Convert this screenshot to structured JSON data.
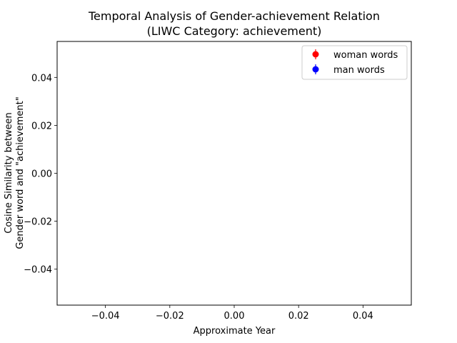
{
  "chart_data": {
    "type": "scatter",
    "title": "Temporal Analysis of Gender-achievement Relation",
    "subtitle": "(LIWC Category: achievement)",
    "xlabel": "Approximate Year",
    "ylabel": [
      "Cosine Similarity between",
      "Gender word and \"achievement\""
    ],
    "xlim": [
      -0.055,
      0.055
    ],
    "ylim": [
      -0.055,
      0.055
    ],
    "x_ticks": [
      -0.04,
      -0.02,
      0.0,
      0.02,
      0.04
    ],
    "x_tick_labels": [
      "−0.04",
      "−0.02",
      "0.00",
      "0.02",
      "0.04"
    ],
    "y_ticks": [
      0.04,
      0.02,
      0.0,
      -0.02,
      -0.04
    ],
    "y_tick_labels": [
      "0.04",
      "0.02",
      "0.00",
      "−0.02",
      "−0.04"
    ],
    "grid": false,
    "legend_position": "top-right",
    "series": [
      {
        "name": "woman words",
        "color": "#ff0000",
        "marker": "circle-errorbar",
        "points": []
      },
      {
        "name": "man words",
        "color": "#0000ff",
        "marker": "circle-errorbar",
        "points": []
      }
    ]
  }
}
